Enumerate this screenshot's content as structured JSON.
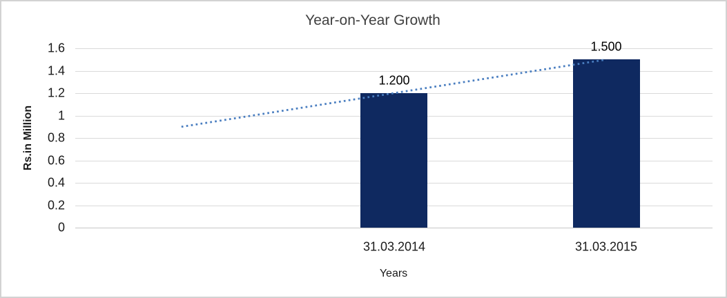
{
  "chart": {
    "title": "Year-on-Year Growth",
    "y_axis": {
      "title": "Rs.in Million",
      "tick_labels": [
        "0",
        "0.2",
        "0.4",
        "0.6",
        "0.8",
        "1",
        "1.2",
        "1.4",
        "1.6"
      ]
    },
    "x_axis": {
      "title": "Years"
    },
    "colors": {
      "bar": "#0f2960",
      "trendline": "#4a7ec0",
      "gridline": "#d9d9d9",
      "axis_line": "#c6c6c6",
      "title_text": "#404040",
      "label_text": "#000000",
      "border": "#d2d2d2"
    }
  },
  "chart_data": {
    "type": "bar",
    "title": "Year-on-Year Growth",
    "xlabel": "Years",
    "ylabel": "Rs.in Million",
    "categories": [
      "",
      "31.03.2014",
      "31.03.2015"
    ],
    "series": [
      {
        "name": "Rs.in Million (bars)",
        "type": "bar",
        "values": [
          null,
          1.2,
          1.5
        ],
        "data_labels": [
          null,
          "1.200",
          "1.500"
        ]
      },
      {
        "name": "trendline",
        "type": "line",
        "style": "dotted",
        "values": [
          0.9,
          1.2,
          1.5
        ]
      }
    ],
    "ylim": [
      0,
      1.6
    ],
    "ytick_step": 0.2,
    "grid": true,
    "legend": false
  }
}
